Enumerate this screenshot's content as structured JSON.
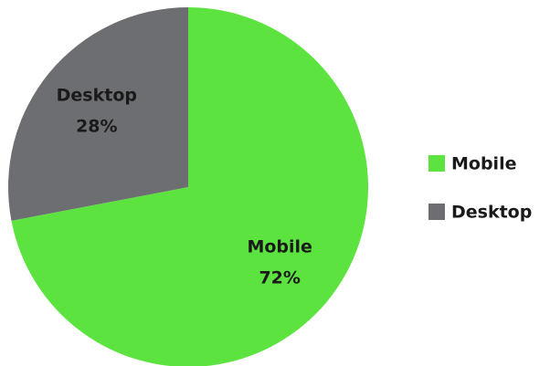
{
  "chart_data": {
    "type": "pie",
    "categories": [
      "Mobile",
      "Desktop"
    ],
    "values": [
      72,
      28
    ],
    "value_labels": [
      "72%",
      "28%"
    ],
    "colors": [
      "#5ce33f",
      "#6d6e71"
    ],
    "legend": "right"
  }
}
